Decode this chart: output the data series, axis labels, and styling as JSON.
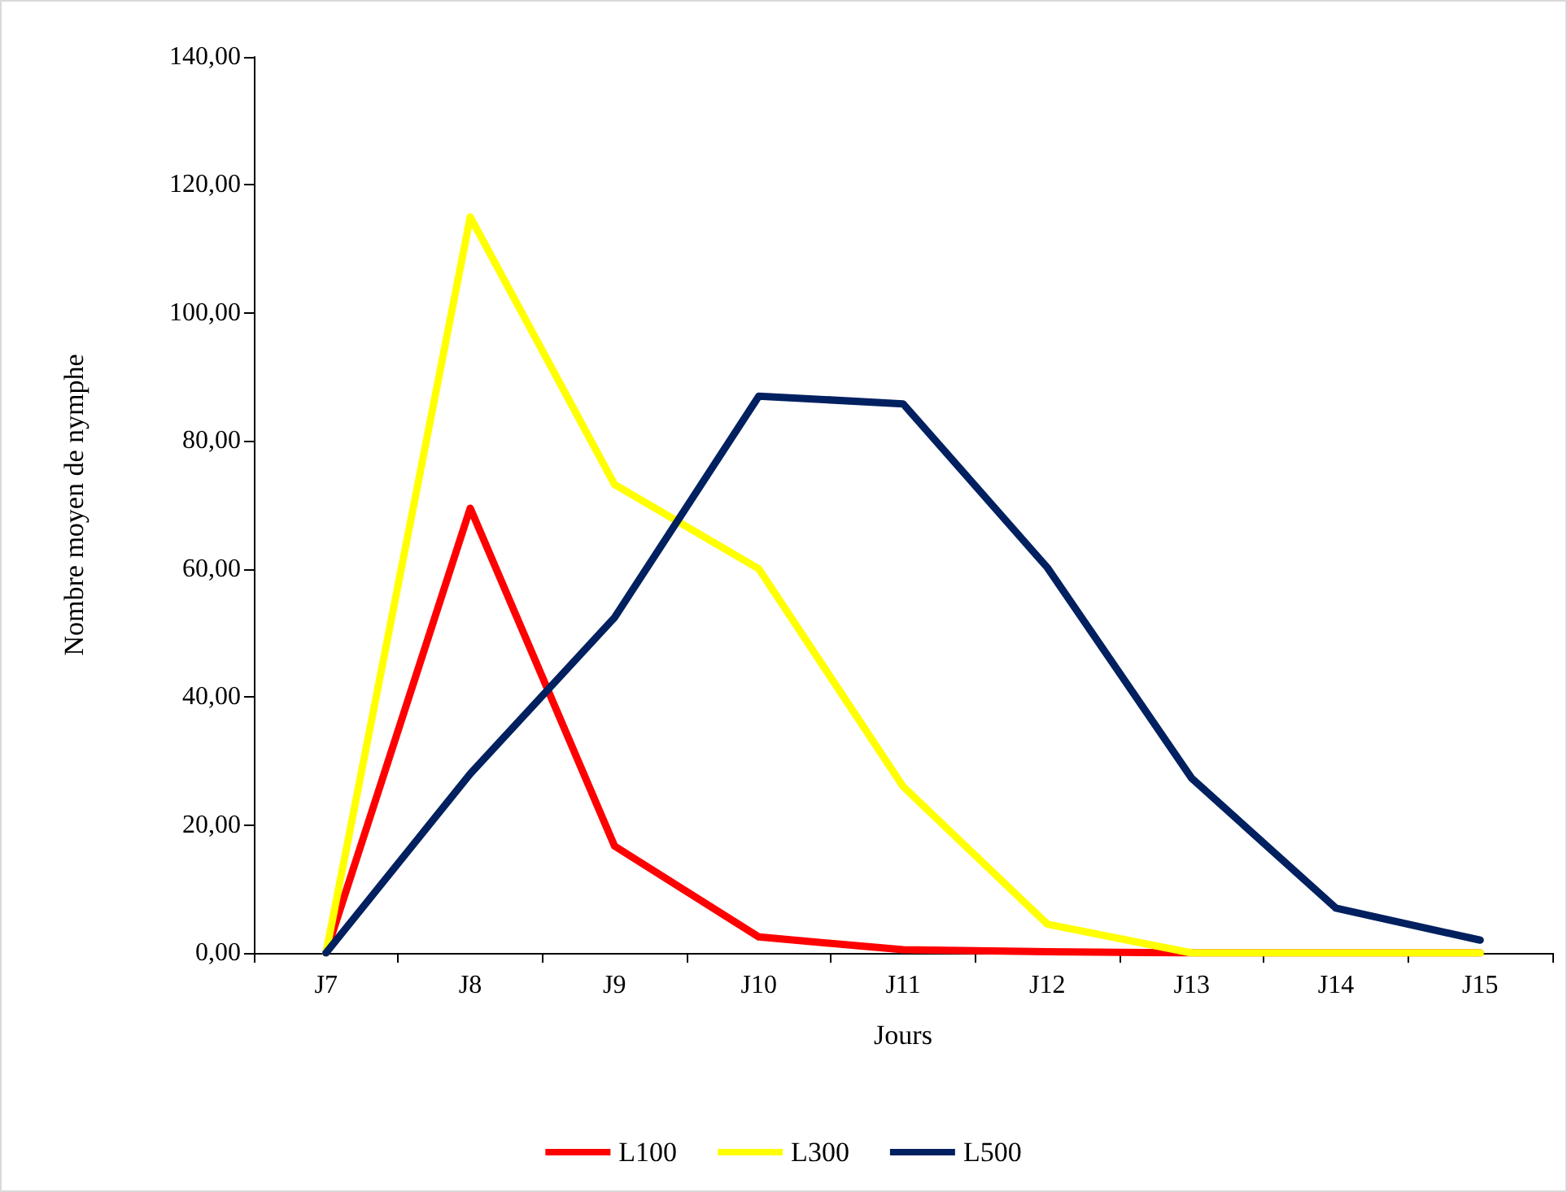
{
  "chart_data": {
    "type": "line",
    "xlabel": "Jours",
    "ylabel": "Nombre moyen de nymphe",
    "categories": [
      "J7",
      "J8",
      "J9",
      "J10",
      "J11",
      "J12",
      "J13",
      "J14",
      "J15"
    ],
    "series": [
      {
        "name": "L100",
        "color": "#ff0000",
        "values": [
          0,
          69.5,
          16.7,
          2.5,
          0.5,
          0.2,
          0,
          0,
          0
        ]
      },
      {
        "name": "L300",
        "color": "#ffff00",
        "values": [
          0,
          115,
          73.2,
          60,
          26,
          4.5,
          0,
          0,
          0
        ]
      },
      {
        "name": "L500",
        "color": "#002060",
        "values": [
          0,
          28,
          52.4,
          87,
          85.8,
          60.2,
          27.3,
          7,
          2
        ]
      }
    ],
    "ylim": [
      0,
      140
    ],
    "yticks": [
      {
        "value": 0,
        "label": "0,00"
      },
      {
        "value": 20,
        "label": "20,00"
      },
      {
        "value": 40,
        "label": "40,00"
      },
      {
        "value": 60,
        "label": "60,00"
      },
      {
        "value": 80,
        "label": "80,00"
      },
      {
        "value": 100,
        "label": "100,00"
      },
      {
        "value": 120,
        "label": "120,00"
      },
      {
        "value": 140,
        "label": "140,00"
      }
    ],
    "grid": false,
    "legend": "bottom",
    "marker": "none",
    "line_style": "solid"
  }
}
